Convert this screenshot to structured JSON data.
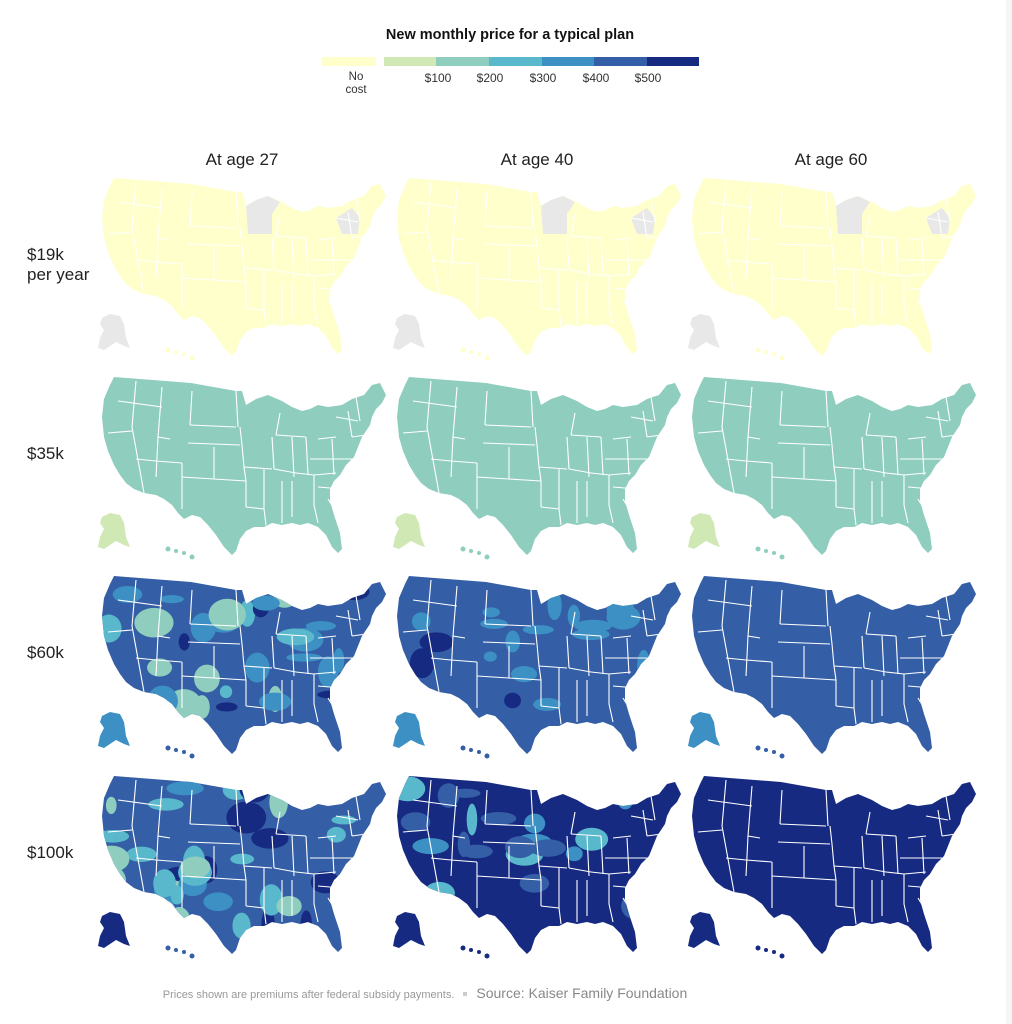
{
  "legend": {
    "title": "New monthly price for a typical plan",
    "no_cost_line1": "No",
    "no_cost_line2": "cost",
    "labels": [
      "$100",
      "$200",
      "$300",
      "$400",
      "$500"
    ],
    "colors": {
      "no_cost": "#ffffcc",
      "b0_100": "#cfe8b4",
      "b100_200": "#8fcdbe",
      "b200_300": "#59b8cb",
      "b300_400": "#3c90c4",
      "b400_500": "#345ea5",
      "b500_plus": "#162a81",
      "no_data": "#e8e8e8"
    }
  },
  "columns": [
    "At age 27",
    "At age 40",
    "At age 60"
  ],
  "rows": [
    {
      "label_line1": "$19k",
      "label_line2": "per year"
    },
    {
      "label_line1": "$35k",
      "label_line2": ""
    },
    {
      "label_line1": "$60k",
      "label_line2": ""
    },
    {
      "label_line1": "$100k",
      "label_line2": ""
    }
  ],
  "map_panels": [
    {
      "row": "$19k per year",
      "column": "At age 27",
      "mainland_color": "#ffffcc",
      "alaska_color": "#e8e8e8",
      "patches": "none",
      "no_data_states": [
        "Minnesota",
        "Vermont/New Hampshire"
      ]
    },
    {
      "row": "$19k per year",
      "column": "At age 40",
      "mainland_color": "#ffffcc",
      "alaska_color": "#e8e8e8",
      "patches": "none",
      "no_data_states": [
        "Minnesota",
        "Vermont/New Hampshire"
      ]
    },
    {
      "row": "$19k per year",
      "column": "At age 60",
      "mainland_color": "#ffffcc",
      "alaska_color": "#e8e8e8",
      "patches": "none",
      "no_data_states": [
        "Minnesota",
        "Vermont/New Hampshire"
      ]
    },
    {
      "row": "$35k",
      "column": "At age 27",
      "mainland_color": "#8fcdbe",
      "alaska_color": "#cfe8b4",
      "patches": "none"
    },
    {
      "row": "$35k",
      "column": "At age 40",
      "mainland_color": "#8fcdbe",
      "alaska_color": "#cfe8b4",
      "patches": "none"
    },
    {
      "row": "$35k",
      "column": "At age 60",
      "mainland_color": "#8fcdbe",
      "alaska_color": "#cfe8b4",
      "patches": "none"
    },
    {
      "row": "$60k",
      "column": "At age 27",
      "mainland_color": "#345ea5",
      "alaska_color": "#3c90c4",
      "patches": "mixed"
    },
    {
      "row": "$60k",
      "column": "At age 40",
      "mainland_color": "#345ea5",
      "alaska_color": "#3c90c4",
      "patches": "some"
    },
    {
      "row": "$60k",
      "column": "At age 60",
      "mainland_color": "#345ea5",
      "alaska_color": "#3c90c4",
      "patches": "none"
    },
    {
      "row": "$100k",
      "column": "At age 27",
      "mainland_color": "#345ea5",
      "alaska_color": "#162a81",
      "patches": "mixed-dark"
    },
    {
      "row": "$100k",
      "column": "At age 40",
      "mainland_color": "#162a81",
      "alaska_color": "#162a81",
      "patches": "mixed-light"
    },
    {
      "row": "$100k",
      "column": "At age 60",
      "mainland_color": "#162a81",
      "alaska_color": "#162a81",
      "patches": "none"
    }
  ],
  "footer": {
    "note": "Prices shown are premiums after federal subsidy payments.",
    "source": "Source: Kaiser Family Foundation"
  }
}
